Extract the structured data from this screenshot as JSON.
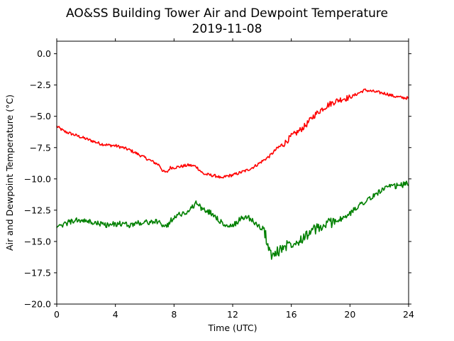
{
  "chart_data": {
    "type": "line",
    "title": "AO&SS Building Tower Air and Dewpoint Temperature",
    "subtitle": "2019-11-08",
    "xlabel": "Time (UTC)",
    "ylabel": "Air and Dewpoint Temperature (°C)",
    "xlim": [
      0,
      24
    ],
    "ylim": [
      -20.0,
      1.0
    ],
    "xticks": [
      0,
      4,
      8,
      12,
      16,
      20,
      24
    ],
    "xtick_labels": [
      "0",
      "4",
      "8",
      "12",
      "16",
      "20",
      "24"
    ],
    "yticks": [
      0.0,
      -2.5,
      -5.0,
      -7.5,
      -10.0,
      -12.5,
      -15.0,
      -17.5,
      -20.0
    ],
    "ytick_labels": [
      "0.0",
      "−2.5",
      "−5.0",
      "−7.5",
      "−10.0",
      "−12.5",
      "−15.0",
      "−17.5",
      "−20.0"
    ],
    "grid": false,
    "series": [
      {
        "color": "#ff0000",
        "x": [
          0,
          0.5,
          1,
          1.5,
          2,
          2.5,
          3,
          3.5,
          4,
          4.5,
          5,
          5.5,
          6,
          6.5,
          7,
          7.25,
          7.5,
          7.75,
          8,
          8.5,
          9,
          9.5,
          10,
          10.5,
          11,
          11.25,
          11.5,
          12,
          12.5,
          13,
          13.5,
          14,
          14.5,
          15,
          15.5,
          16,
          16.5,
          17,
          17.5,
          18,
          18.5,
          19,
          19.5,
          20,
          20.5,
          21,
          21.5,
          22,
          22.5,
          23,
          23.5,
          24
        ],
        "y": [
          -5.8,
          -6.2,
          -6.4,
          -6.6,
          -6.8,
          -7.0,
          -7.2,
          -7.3,
          -7.35,
          -7.5,
          -7.7,
          -8.0,
          -8.3,
          -8.6,
          -8.9,
          -9.4,
          -9.5,
          -9.1,
          -9.1,
          -9.0,
          -8.9,
          -9.0,
          -9.6,
          -9.7,
          -9.8,
          -10.0,
          -9.8,
          -9.7,
          -9.5,
          -9.3,
          -9.0,
          -8.6,
          -8.2,
          -7.6,
          -7.2,
          -6.6,
          -6.2,
          -5.7,
          -5.0,
          -4.5,
          -4.1,
          -3.8,
          -3.6,
          -3.5,
          -3.2,
          -2.9,
          -3.0,
          -3.1,
          -3.2,
          -3.4,
          -3.5,
          -3.55
        ]
      },
      {
        "color": "#008000",
        "x": [
          0,
          0.25,
          0.5,
          1,
          1.5,
          2,
          2.5,
          3,
          3.5,
          4,
          4.5,
          5,
          5.5,
          6,
          6.5,
          7,
          7.5,
          8,
          8.5,
          9,
          9.5,
          10,
          10.5,
          11,
          11.5,
          12,
          12.5,
          13,
          13.5,
          14,
          14.25,
          14.5,
          14.75,
          15,
          15.5,
          16,
          16.5,
          17,
          17.5,
          18,
          18.5,
          19,
          19.5,
          20,
          20.5,
          21,
          21.5,
          22,
          22.5,
          23,
          23.5,
          24
        ],
        "y": [
          -13.7,
          -13.9,
          -13.6,
          -13.4,
          -13.3,
          -13.4,
          -13.5,
          -13.6,
          -13.7,
          -13.6,
          -13.6,
          -13.7,
          -13.5,
          -13.5,
          -13.4,
          -13.5,
          -13.8,
          -13.0,
          -12.8,
          -12.6,
          -11.9,
          -12.5,
          -12.7,
          -13.2,
          -13.8,
          -13.8,
          -13.2,
          -13.0,
          -13.5,
          -14.0,
          -14.5,
          -15.8,
          -16.2,
          -15.9,
          -15.4,
          -15.1,
          -14.9,
          -14.5,
          -14.1,
          -13.9,
          -13.6,
          -13.3,
          -13.2,
          -12.8,
          -12.2,
          -11.8,
          -11.5,
          -11.0,
          -10.7,
          -10.6,
          -10.5,
          -10.35
        ]
      }
    ]
  }
}
